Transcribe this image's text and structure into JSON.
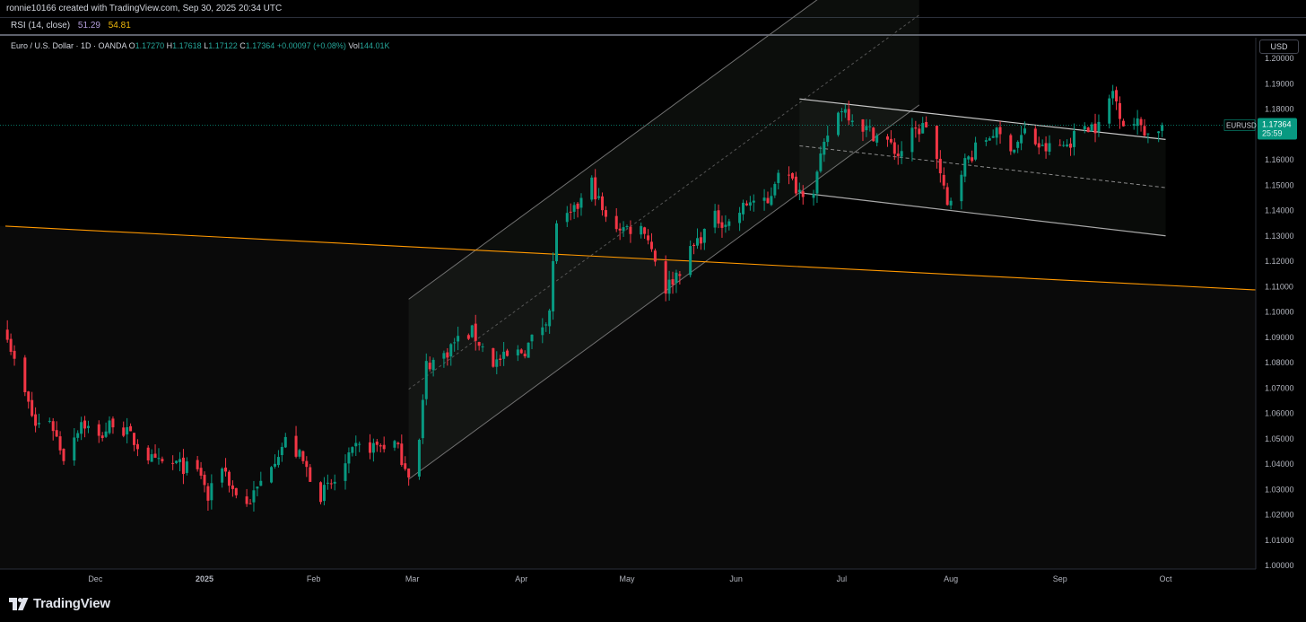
{
  "header": {
    "credit": "ronnie10166 created with TradingView.com, Sep 30, 2025 20:34 UTC"
  },
  "indicator": {
    "name": "RSI (14, close)",
    "value1": "51.29",
    "value2": "54.81",
    "value1_color": "#b39ddb",
    "value2_color": "#f0b90b"
  },
  "legend": {
    "symbol": "Euro / U.S. Dollar · 1D · OANDA",
    "o_label": "O",
    "o_value": "1.17270",
    "h_label": "H",
    "h_value": "1.17618",
    "l_label": "L",
    "l_value": "1.17122",
    "c_label": "C",
    "c_value": "1.17364",
    "change": "+0.00097 (+0.08%)",
    "vol_label": "Vol",
    "vol_value": "144.01K"
  },
  "currency_button": "USD",
  "price_tag": {
    "symbol": "EURUSD",
    "price": "1.17364",
    "countdown": "25:59",
    "color": "#089981"
  },
  "brand": "TradingView",
  "chart_data": {
    "type": "candlestick",
    "y_axis": {
      "side": "right",
      "ylim": [
        1.0,
        1.2
      ],
      "ticks": [
        "1.20000",
        "1.19000",
        "1.18000",
        "1.17000",
        "1.16000",
        "1.15000",
        "1.14000",
        "1.13000",
        "1.12000",
        "1.11000",
        "1.10000",
        "1.09000",
        "1.08000",
        "1.07000",
        "1.06000",
        "1.05000",
        "1.04000",
        "1.03000",
        "1.02000",
        "1.01000",
        "1.00000"
      ]
    },
    "x_axis": {
      "ticks": [
        {
          "label": "Dec",
          "date": "2024-12-01",
          "bold": false
        },
        {
          "label": "2025",
          "date": "2025-01-01",
          "bold": true
        },
        {
          "label": "Feb",
          "date": "2025-02-01",
          "bold": false
        },
        {
          "label": "Mar",
          "date": "2025-03-01",
          "bold": false
        },
        {
          "label": "Apr",
          "date": "2025-04-01",
          "bold": false
        },
        {
          "label": "May",
          "date": "2025-05-01",
          "bold": false
        },
        {
          "label": "Jun",
          "date": "2025-06-01",
          "bold": false
        },
        {
          "label": "Jul",
          "date": "2025-07-01",
          "bold": false
        },
        {
          "label": "Aug",
          "date": "2025-08-01",
          "bold": false
        },
        {
          "label": "Sep",
          "date": "2025-09-01",
          "bold": false
        },
        {
          "label": "Oct",
          "date": "2025-10-01",
          "bold": false
        }
      ]
    },
    "up_color": "#089981",
    "down_color": "#f23645",
    "close_path": [
      [
        "2024-11-06",
        1.092
      ],
      [
        "2024-11-08",
        1.08
      ],
      [
        "2024-11-14",
        1.055
      ],
      [
        "2024-11-18",
        1.058
      ],
      [
        "2024-11-22",
        1.043
      ],
      [
        "2024-11-27",
        1.057
      ],
      [
        "2024-12-02",
        1.05
      ],
      [
        "2024-12-06",
        1.057
      ],
      [
        "2024-12-10",
        1.052
      ],
      [
        "2024-12-18",
        1.04
      ],
      [
        "2024-12-24",
        1.04
      ],
      [
        "2024-12-31",
        1.036
      ],
      [
        "2025-01-02",
        1.026
      ],
      [
        "2025-01-06",
        1.04
      ],
      [
        "2025-01-09",
        1.03
      ],
      [
        "2025-01-13",
        1.024
      ],
      [
        "2025-01-16",
        1.03
      ],
      [
        "2025-01-20",
        1.041
      ],
      [
        "2025-01-24",
        1.049
      ],
      [
        "2025-01-28",
        1.043
      ],
      [
        "2025-02-03",
        1.028
      ],
      [
        "2025-02-07",
        1.033
      ],
      [
        "2025-02-13",
        1.046
      ],
      [
        "2025-02-18",
        1.047
      ],
      [
        "2025-02-24",
        1.048
      ],
      [
        "2025-02-28",
        1.037
      ],
      [
        "2025-03-03",
        1.049
      ],
      [
        "2025-03-05",
        1.079
      ],
      [
        "2025-03-10",
        1.083
      ],
      [
        "2025-03-13",
        1.088
      ],
      [
        "2025-03-18",
        1.092
      ],
      [
        "2025-03-24",
        1.08
      ],
      [
        "2025-03-28",
        1.082
      ],
      [
        "2025-04-02",
        1.085
      ],
      [
        "2025-04-07",
        1.095
      ],
      [
        "2025-04-09",
        1.101
      ],
      [
        "2025-04-11",
        1.136
      ],
      [
        "2025-04-15",
        1.137
      ],
      [
        "2025-04-21",
        1.151
      ],
      [
        "2025-04-25",
        1.136
      ],
      [
        "2025-04-30",
        1.133
      ],
      [
        "2025-05-06",
        1.133
      ],
      [
        "2025-05-12",
        1.109
      ],
      [
        "2025-05-16",
        1.117
      ],
      [
        "2025-05-21",
        1.128
      ],
      [
        "2025-05-26",
        1.137
      ],
      [
        "2025-05-30",
        1.135
      ],
      [
        "2025-06-05",
        1.144
      ],
      [
        "2025-06-10",
        1.142
      ],
      [
        "2025-06-13",
        1.157
      ],
      [
        "2025-06-19",
        1.148
      ],
      [
        "2025-06-23",
        1.149
      ],
      [
        "2025-06-27",
        1.17
      ],
      [
        "2025-07-01",
        1.181
      ],
      [
        "2025-07-08",
        1.172
      ],
      [
        "2025-07-14",
        1.167
      ],
      [
        "2025-07-17",
        1.162
      ],
      [
        "2025-07-21",
        1.17
      ],
      [
        "2025-07-25",
        1.174
      ],
      [
        "2025-07-28",
        1.16
      ],
      [
        "2025-07-31",
        1.141
      ],
      [
        "2025-08-04",
        1.157
      ],
      [
        "2025-08-08",
        1.164
      ],
      [
        "2025-08-13",
        1.171
      ],
      [
        "2025-08-19",
        1.165
      ],
      [
        "2025-08-22",
        1.171
      ],
      [
        "2025-08-27",
        1.164
      ],
      [
        "2025-09-03",
        1.166
      ],
      [
        "2025-09-08",
        1.174
      ],
      [
        "2025-09-12",
        1.173
      ],
      [
        "2025-09-16",
        1.187
      ],
      [
        "2025-09-19",
        1.175
      ],
      [
        "2025-09-24",
        1.174
      ],
      [
        "2025-09-26",
        1.17
      ],
      [
        "2025-09-30",
        1.17364
      ]
    ],
    "drawings": {
      "long_term_trendline": {
        "color": "#ff9800",
        "points": [
          [
            "2024-11-03",
            1.134
          ],
          [
            "2025-10-22",
            1.109
          ]
        ]
      },
      "ascending_channel": {
        "start": [
          "2025-02-28",
          1.034
        ],
        "end": [
          "2025-06-19",
          1.147
        ],
        "offset": 0.071,
        "extend_to": "2025-07-23"
      },
      "descending_channel": {
        "upper_start": [
          "2025-06-19",
          1.184
        ],
        "upper_end": [
          "2025-10-01",
          1.168
        ],
        "lower_start": [
          "2025-06-19",
          1.147
        ],
        "lower_end": [
          "2025-10-01",
          1.13
        ]
      },
      "last_price_line": 1.17364
    }
  }
}
